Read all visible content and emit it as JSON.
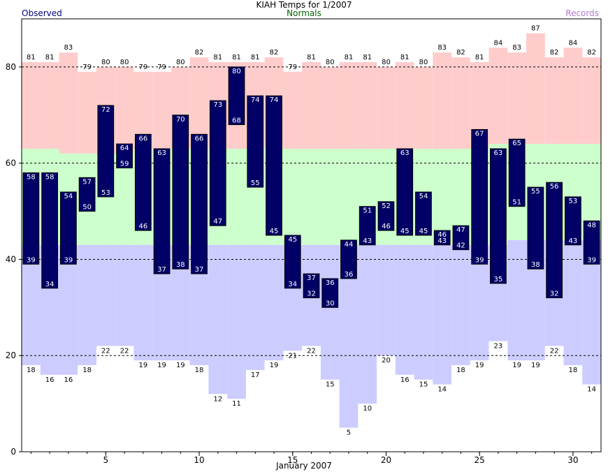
{
  "header": {
    "title": "KIAH Temps for 1/2007",
    "subtitle": "Normals",
    "observed_label": "Observed",
    "records_label": "Records"
  },
  "colors": {
    "observed": "#000066",
    "record_high": "#ffcccc",
    "normal": "#ccffcc",
    "record_low": "#ccccff",
    "observed_text": "#ffffff"
  },
  "chart_data": {
    "type": "bar",
    "title": "KIAH Temps for 1/2007",
    "subtitle": "Normals",
    "xlabel": "January 2007",
    "ylabel": "",
    "xlim": [
      0.5,
      31.5
    ],
    "ylim": [
      0,
      90
    ],
    "x_ticks": [
      5,
      10,
      15,
      20,
      25,
      30
    ],
    "y_ticks": [
      0,
      20,
      40,
      60,
      80
    ],
    "dashed_gridlines": [
      20,
      40,
      60,
      80
    ],
    "days": [
      1,
      2,
      3,
      4,
      5,
      6,
      7,
      8,
      9,
      10,
      11,
      12,
      13,
      14,
      15,
      16,
      17,
      18,
      19,
      20,
      21,
      22,
      23,
      24,
      25,
      26,
      27,
      28,
      29,
      30,
      31
    ],
    "series": [
      {
        "name": "Observed",
        "high": [
          58,
          58,
          54,
          57,
          72,
          64,
          66,
          63,
          70,
          66,
          73,
          80,
          74,
          74,
          45,
          37,
          36,
          44,
          51,
          52,
          63,
          54,
          46,
          47,
          67,
          63,
          65,
          55,
          56,
          53,
          48
        ],
        "low": [
          39,
          34,
          39,
          50,
          53,
          59,
          46,
          37,
          38,
          37,
          47,
          68,
          55,
          45,
          34,
          32,
          30,
          36,
          43,
          46,
          45,
          45,
          43,
          42,
          39,
          35,
          51,
          38,
          32,
          43,
          39
        ]
      },
      {
        "name": "Normals",
        "high": [
          63,
          63,
          62,
          62,
          62,
          62,
          63,
          63,
          63,
          63,
          63,
          63,
          63,
          63,
          63,
          63,
          63,
          63,
          63,
          63,
          63,
          63,
          63,
          63,
          63,
          64,
          64,
          64,
          64,
          64,
          64
        ],
        "low": [
          43,
          43,
          43,
          43,
          43,
          43,
          43,
          43,
          43,
          43,
          43,
          43,
          43,
          43,
          43,
          43,
          43,
          43,
          43,
          43,
          43,
          43,
          43,
          43,
          43,
          43,
          44,
          44,
          44,
          44,
          44
        ]
      },
      {
        "name": "Records",
        "high": [
          81,
          81,
          83,
          79,
          80,
          80,
          79,
          79,
          80,
          82,
          81,
          81,
          81,
          82,
          79,
          81,
          80,
          81,
          81,
          80,
          81,
          80,
          83,
          82,
          81,
          84,
          83,
          87,
          82,
          84,
          82
        ],
        "low": [
          18,
          16,
          16,
          18,
          22,
          22,
          19,
          19,
          19,
          18,
          12,
          11,
          17,
          19,
          21,
          22,
          15,
          5,
          10,
          20,
          16,
          15,
          14,
          18,
          19,
          23,
          19,
          19,
          22,
          18,
          14
        ]
      }
    ]
  }
}
